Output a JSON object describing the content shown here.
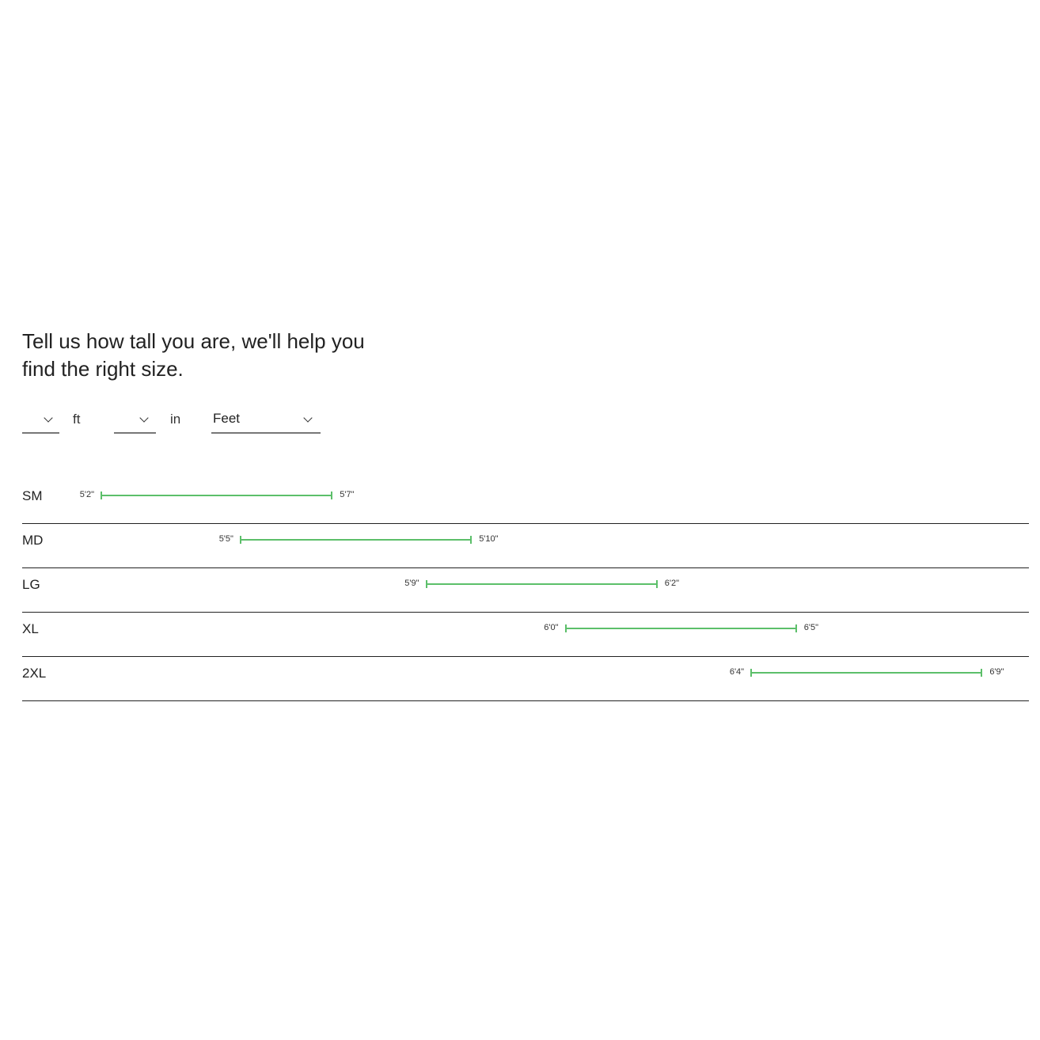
{
  "heading": "Tell us how tall you are, we'll help you find the right size.",
  "inputs": {
    "feet": {
      "value": "",
      "unit": "ft"
    },
    "inches": {
      "value": "",
      "unit": "in"
    },
    "unit_system": {
      "value": "Feet"
    }
  },
  "accent_color": "#5cbf6a",
  "sizes": [
    {
      "size": "SM",
      "min": "5'2\"",
      "max": "5'7\"",
      "min_in": 62,
      "max_in": 67
    },
    {
      "size": "MD",
      "min": "5'5\"",
      "max": "5'10\"",
      "min_in": 65,
      "max_in": 70
    },
    {
      "size": "LG",
      "min": "5'9\"",
      "max": "6'2\"",
      "min_in": 69,
      "max_in": 74
    },
    {
      "size": "XL",
      "min": "6'0\"",
      "max": "6'5\"",
      "min_in": 72,
      "max_in": 77
    },
    {
      "size": "2XL",
      "min": "6'4\"",
      "max": "6'9\"",
      "min_in": 76,
      "max_in": 81
    }
  ]
}
